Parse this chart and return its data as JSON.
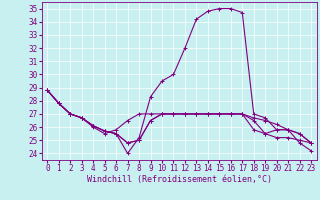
{
  "xlabel": "Windchill (Refroidissement éolien,°C)",
  "background_color": "#c8f0f0",
  "grid_color": "#ffffff",
  "line_color": "#800080",
  "xlim": [
    -0.5,
    23.5
  ],
  "ylim": [
    23.5,
    35.5
  ],
  "xticks": [
    0,
    1,
    2,
    3,
    4,
    5,
    6,
    7,
    8,
    9,
    10,
    11,
    12,
    13,
    14,
    15,
    16,
    17,
    18,
    19,
    20,
    21,
    22,
    23
  ],
  "yticks": [
    24,
    25,
    26,
    27,
    28,
    29,
    30,
    31,
    32,
    33,
    34,
    35
  ],
  "series": [
    [
      28.8,
      27.8,
      27.0,
      26.7,
      26.1,
      25.7,
      25.5,
      24.0,
      25.2,
      28.3,
      29.5,
      30.0,
      32.0,
      34.2,
      34.8,
      35.0,
      35.0,
      34.7,
      27.0,
      26.7,
      25.8,
      25.8,
      24.8,
      24.2
    ],
    [
      28.8,
      27.8,
      27.0,
      26.7,
      26.0,
      25.5,
      25.8,
      26.5,
      27.0,
      27.0,
      27.0,
      27.0,
      27.0,
      27.0,
      27.0,
      27.0,
      27.0,
      27.0,
      26.7,
      26.5,
      26.2,
      25.8,
      25.5,
      24.8
    ],
    [
      28.8,
      27.8,
      27.0,
      26.7,
      26.1,
      25.7,
      25.5,
      24.8,
      25.0,
      26.5,
      27.0,
      27.0,
      27.0,
      27.0,
      27.0,
      27.0,
      27.0,
      27.0,
      26.5,
      25.5,
      25.2,
      25.2,
      25.0,
      24.8
    ],
    [
      28.8,
      27.8,
      27.0,
      26.7,
      26.1,
      25.7,
      25.5,
      24.8,
      25.0,
      26.5,
      27.0,
      27.0,
      27.0,
      27.0,
      27.0,
      27.0,
      27.0,
      27.0,
      25.8,
      25.5,
      25.8,
      25.8,
      25.5,
      24.8
    ]
  ],
  "xlabel_fontsize": 6,
  "tick_fontsize": 5.5,
  "linewidth": 0.8,
  "markersize": 2.5
}
